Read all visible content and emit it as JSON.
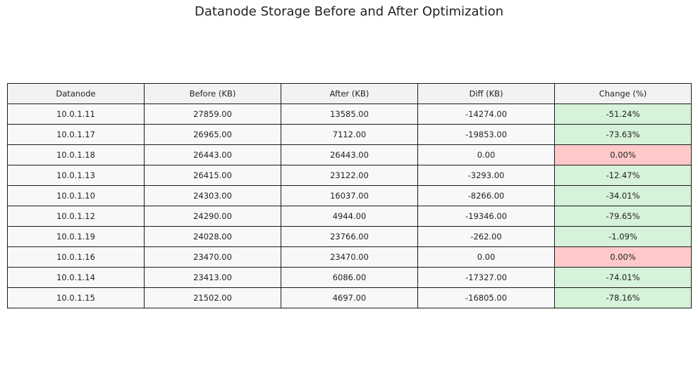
{
  "title": "Datanode Storage Before and After Optimization",
  "colors": {
    "header_bg": "#f2f2f2",
    "cell_bg": "#f8f8f8",
    "reduced_bg": "#d6f2d9",
    "unchanged_bg": "#ffc9c9",
    "border": "#1a1a1a"
  },
  "chart_data": {
    "type": "table",
    "title": "Datanode Storage Before and After Optimization",
    "columns": [
      "Datanode",
      "Before (KB)",
      "After (KB)",
      "Diff (KB)",
      "Change (%)"
    ],
    "rows": [
      [
        "10.0.1.11",
        "27859.00",
        "13585.00",
        "-14274.00",
        "-51.24%"
      ],
      [
        "10.0.1.17",
        "26965.00",
        "7112.00",
        "-19853.00",
        "-73.63%"
      ],
      [
        "10.0.1.18",
        "26443.00",
        "26443.00",
        "0.00",
        "0.00%"
      ],
      [
        "10.0.1.13",
        "26415.00",
        "23122.00",
        "-3293.00",
        "-12.47%"
      ],
      [
        "10.0.1.10",
        "24303.00",
        "16037.00",
        "-8266.00",
        "-34.01%"
      ],
      [
        "10.0.1.12",
        "24290.00",
        "4944.00",
        "-19346.00",
        "-79.65%"
      ],
      [
        "10.0.1.19",
        "24028.00",
        "23766.00",
        "-262.00",
        "-1.09%"
      ],
      [
        "10.0.1.16",
        "23470.00",
        "23470.00",
        "0.00",
        "0.00%"
      ],
      [
        "10.0.1.14",
        "23413.00",
        "6086.00",
        "-17327.00",
        "-74.01%"
      ],
      [
        "10.0.1.15",
        "21502.00",
        "4697.00",
        "-16805.00",
        "-78.16%"
      ]
    ],
    "change_cell_status": [
      "reduced",
      "reduced",
      "unchanged",
      "reduced",
      "reduced",
      "reduced",
      "reduced",
      "unchanged",
      "reduced",
      "reduced"
    ]
  }
}
